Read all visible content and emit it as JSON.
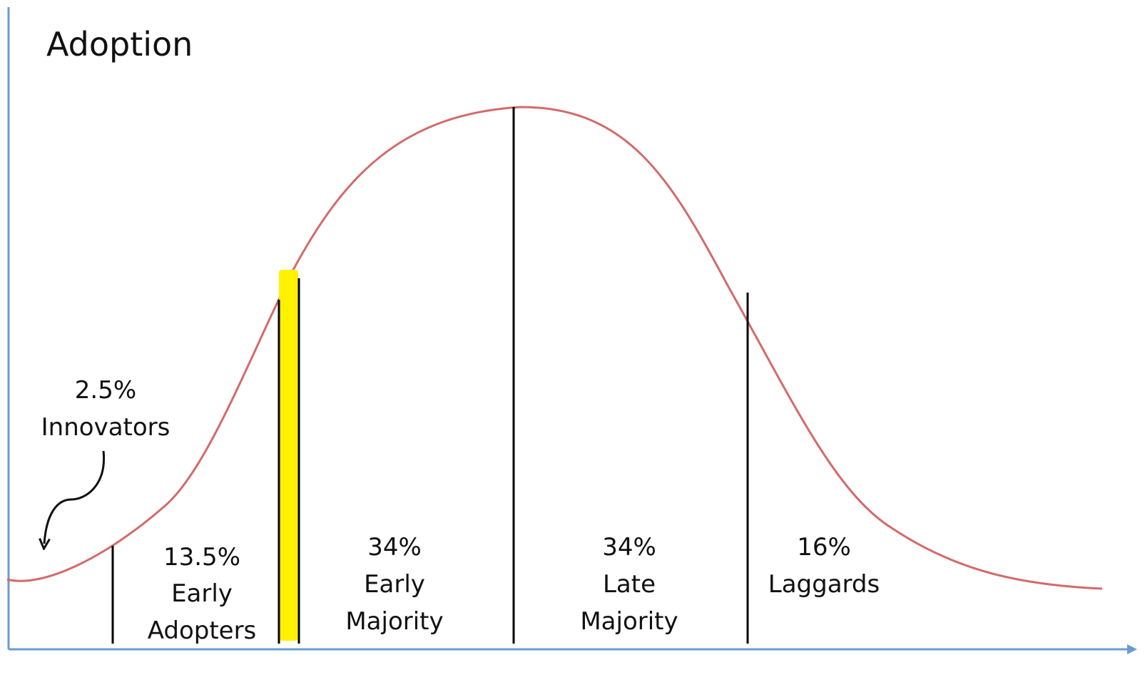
{
  "title": "Adoption",
  "colors": {
    "axis": "#6b9bd2",
    "curve": "#d46a6a",
    "divider": "#000000",
    "highlight": "#fff200",
    "text": "#111111"
  },
  "segments": [
    {
      "id": "innovators",
      "percent": "2.5%",
      "lines": [
        "Innovators"
      ]
    },
    {
      "id": "early-adopters",
      "percent": "13.5%",
      "lines": [
        "Early",
        "Adopters"
      ]
    },
    {
      "id": "early-majority",
      "percent": "34%",
      "lines": [
        "Early",
        "Majority"
      ]
    },
    {
      "id": "late-majority",
      "percent": "34%",
      "lines": [
        "Late",
        "Majority"
      ]
    },
    {
      "id": "laggards",
      "percent": "16%",
      "lines": [
        "Laggards"
      ]
    }
  ],
  "highlight": {
    "between": [
      "early-adopters",
      "early-majority"
    ]
  }
}
